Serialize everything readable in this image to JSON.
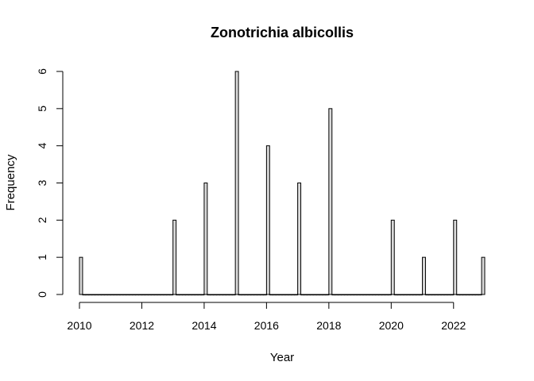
{
  "chart_data": {
    "type": "bar",
    "title": "Zonotrichia albicollis",
    "xlabel": "Year",
    "ylabel": "Frequency",
    "xlim": [
      2010,
      2023
    ],
    "ylim": [
      0,
      6
    ],
    "xticks": [
      "2010",
      "2012",
      "2014",
      "2016",
      "2018",
      "2020",
      "2022"
    ],
    "yticks": [
      "0",
      "1",
      "2",
      "3",
      "4",
      "5",
      "6"
    ],
    "categories": [
      "2010",
      "2011",
      "2012",
      "2013",
      "2014",
      "2015",
      "2016",
      "2017",
      "2018",
      "2019",
      "2020",
      "2021",
      "2022",
      "2023"
    ],
    "values": [
      1,
      0,
      0,
      2,
      3,
      6,
      4,
      3,
      5,
      0,
      2,
      1,
      2,
      1
    ],
    "bar_fill": "#d9d9d9",
    "bar_stroke": "#000000"
  }
}
